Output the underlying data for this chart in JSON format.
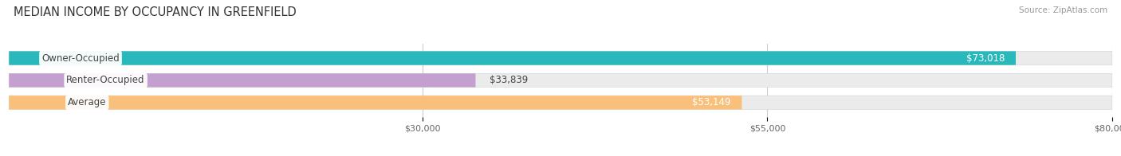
{
  "title": "MEDIAN INCOME BY OCCUPANCY IN GREENFIELD",
  "source": "Source: ZipAtlas.com",
  "categories": [
    "Owner-Occupied",
    "Renter-Occupied",
    "Average"
  ],
  "values": [
    73018,
    33839,
    53149
  ],
  "labels": [
    "$73,018",
    "$33,839",
    "$53,149"
  ],
  "bar_colors": [
    "#29b8bc",
    "#c4a0d0",
    "#f8c07a"
  ],
  "xmin": 0,
  "xmax": 80000,
  "xticks": [
    30000,
    55000,
    80000
  ],
  "xtick_labels": [
    "$30,000",
    "$55,000",
    "$80,000"
  ],
  "background_color": "#ffffff",
  "bar_bg_color": "#ebebeb",
  "bar_border_color": "#d8d8d8",
  "title_fontsize": 10.5,
  "source_fontsize": 7.5,
  "cat_fontsize": 8.5,
  "val_fontsize": 8.5,
  "tick_fontsize": 8,
  "bar_height": 0.62,
  "rounding": 8000
}
